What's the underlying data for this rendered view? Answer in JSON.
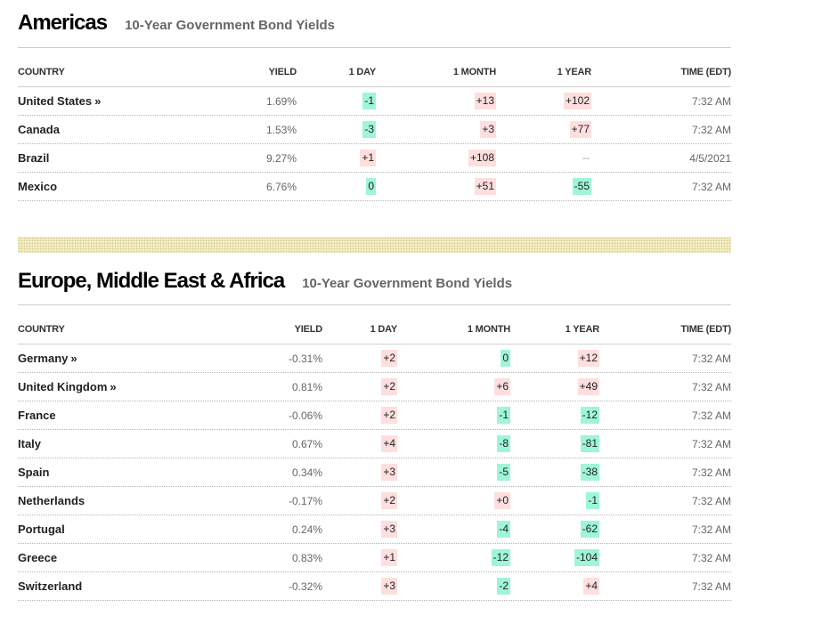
{
  "americas": {
    "title": "Americas",
    "subtitle": "10-Year Government Bond Yields",
    "columns": {
      "country": "COUNTRY",
      "yield": "YIELD",
      "day": "1 DAY",
      "month": "1 MONTH",
      "year": "1 YEAR",
      "time": "TIME (EDT)"
    },
    "rows": [
      {
        "country": "United States",
        "link": "»",
        "yield": "1.69%",
        "day": "-1",
        "day_dir": "neg",
        "month": "+13",
        "month_dir": "pos",
        "year": "+102",
        "year_dir": "pos",
        "time": "7:32 AM"
      },
      {
        "country": "Canada",
        "link": "",
        "yield": "1.53%",
        "day": "-3",
        "day_dir": "neg",
        "month": "+3",
        "month_dir": "pos",
        "year": "+77",
        "year_dir": "pos",
        "time": "7:32 AM"
      },
      {
        "country": "Brazil",
        "link": "",
        "yield": "9.27%",
        "day": "+1",
        "day_dir": "pos",
        "month": "+108",
        "month_dir": "pos",
        "year": "--",
        "year_dir": "none",
        "time": "4/5/2021"
      },
      {
        "country": "Mexico",
        "link": "",
        "yield": "6.76%",
        "day": "0",
        "day_dir": "flat",
        "month": "+51",
        "month_dir": "pos",
        "year": "-55",
        "year_dir": "neg",
        "time": "7:32 AM"
      }
    ]
  },
  "emea": {
    "title": "Europe, Middle East & Africa",
    "subtitle": "10-Year Government Bond Yields",
    "columns": {
      "country": "COUNTRY",
      "yield": "YIELD",
      "day": "1 DAY",
      "month": "1 MONTH",
      "year": "1 YEAR",
      "time": "TIME (EDT)"
    },
    "rows": [
      {
        "country": "Germany",
        "link": "»",
        "yield": "-0.31%",
        "day": "+2",
        "day_dir": "pos",
        "month": "0",
        "month_dir": "flat",
        "year": "+12",
        "year_dir": "pos",
        "time": "7:32 AM"
      },
      {
        "country": "United Kingdom",
        "link": "»",
        "yield": "0.81%",
        "day": "+2",
        "day_dir": "pos",
        "month": "+6",
        "month_dir": "pos",
        "year": "+49",
        "year_dir": "pos",
        "time": "7:32 AM"
      },
      {
        "country": "France",
        "link": "",
        "yield": "-0.06%",
        "day": "+2",
        "day_dir": "pos",
        "month": "-1",
        "month_dir": "neg",
        "year": "-12",
        "year_dir": "neg",
        "time": "7:32 AM"
      },
      {
        "country": "Italy",
        "link": "",
        "yield": "0.67%",
        "day": "+4",
        "day_dir": "pos",
        "month": "-8",
        "month_dir": "neg",
        "year": "-81",
        "year_dir": "neg",
        "time": "7:32 AM"
      },
      {
        "country": "Spain",
        "link": "",
        "yield": "0.34%",
        "day": "+3",
        "day_dir": "pos",
        "month": "-5",
        "month_dir": "neg",
        "year": "-38",
        "year_dir": "neg",
        "time": "7:32 AM"
      },
      {
        "country": "Netherlands",
        "link": "",
        "yield": "-0.17%",
        "day": "+2",
        "day_dir": "pos",
        "month": "+0",
        "month_dir": "pos",
        "year": "-1",
        "year_dir": "neg",
        "time": "7:32 AM"
      },
      {
        "country": "Portugal",
        "link": "",
        "yield": "0.24%",
        "day": "+3",
        "day_dir": "pos",
        "month": "-4",
        "month_dir": "neg",
        "year": "-62",
        "year_dir": "neg",
        "time": "7:32 AM"
      },
      {
        "country": "Greece",
        "link": "",
        "yield": "0.83%",
        "day": "+1",
        "day_dir": "pos",
        "month": "-12",
        "month_dir": "neg",
        "year": "-104",
        "year_dir": "neg",
        "time": "7:32 AM"
      },
      {
        "country": "Switzerland",
        "link": "",
        "yield": "-0.32%",
        "day": "+3",
        "day_dir": "pos",
        "month": "-2",
        "month_dir": "neg",
        "year": "+4",
        "year_dir": "pos",
        "time": "7:32 AM"
      }
    ]
  },
  "colors": {
    "positive_bg": "#ffdede",
    "negative_bg": "#9ff5d8",
    "subtitle": "#666666",
    "divider": "#f3eec4"
  }
}
